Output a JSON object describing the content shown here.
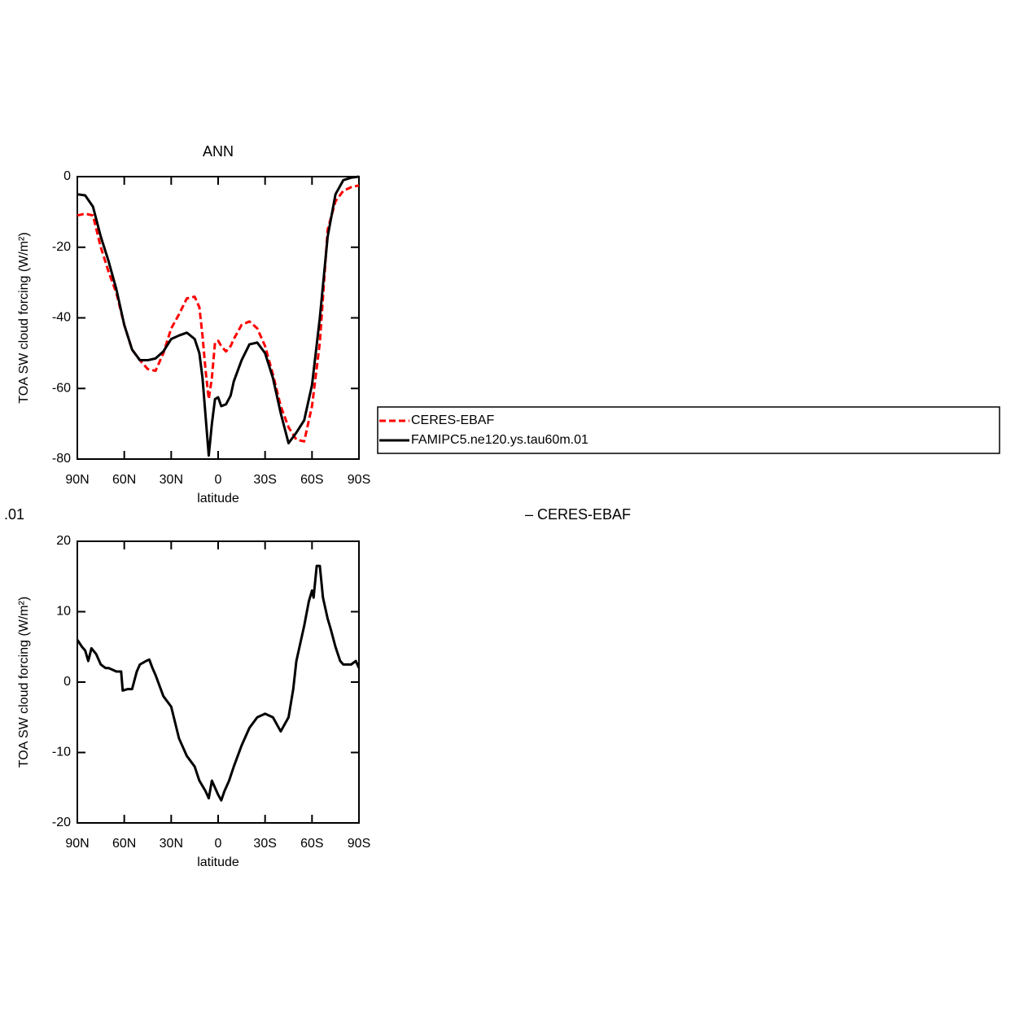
{
  "chart_data": [
    {
      "type": "line",
      "title": "ANN",
      "xlabel": "latitude",
      "ylabel": "TOA SW cloud forcing (W/m²)",
      "x": [
        90,
        85,
        80,
        75,
        70,
        65,
        60,
        55,
        50,
        45,
        40,
        35,
        30,
        25,
        20,
        15,
        12,
        10,
        8,
        6,
        4,
        2,
        0,
        -2,
        -5,
        -8,
        -10,
        -15,
        -20,
        -25,
        -30,
        -35,
        -40,
        -45,
        -50,
        -55,
        -60,
        -65,
        -70,
        -75,
        -80,
        -85,
        -90
      ],
      "xlim": [
        90,
        -90
      ],
      "xticks": [
        {
          "value": 90,
          "label": "90N"
        },
        {
          "value": 60,
          "label": "60N"
        },
        {
          "value": 30,
          "label": "30N"
        },
        0,
        {
          "value": -30,
          "label": "30S"
        },
        {
          "value": -60,
          "label": "60S"
        },
        {
          "value": -90,
          "label": "90S"
        }
      ],
      "ylim": [
        -80,
        0
      ],
      "yticks": [
        -80,
        -60,
        -40,
        -20,
        0
      ],
      "series": [
        {
          "name": "CERES-EBAF",
          "color": "#ff0000",
          "dashed": true,
          "values": [
            -11,
            -10.5,
            -11,
            -20,
            -27,
            -33,
            -42,
            -49,
            -52,
            -54.5,
            -55,
            -50,
            -43,
            -39,
            -34.5,
            -34,
            -37,
            -45,
            -55,
            -63,
            -57,
            -47,
            -46.5,
            -48,
            -49.5,
            -48,
            -46,
            -42,
            -41,
            -43,
            -48,
            -56,
            -65,
            -71,
            -74.5,
            -75,
            -65,
            -47,
            -15,
            -7,
            -4,
            -3,
            -2.5
          ]
        },
        {
          "name": "FAMIPC5.ne120.ys.tau60m.01",
          "color": "#000000",
          "dashed": false,
          "values": [
            -5,
            -5.3,
            -8.5,
            -17,
            -24,
            -32,
            -42,
            -49,
            -52,
            -52,
            -51.5,
            -49.5,
            -46,
            -45,
            -44.2,
            -46,
            -50,
            -57,
            -68,
            -79,
            -70,
            -63,
            -62.5,
            -65,
            -64.5,
            -62,
            -58,
            -52,
            -47.5,
            -47,
            -50,
            -57,
            -67,
            -75.5,
            -72.5,
            -69,
            -59,
            -40,
            -17,
            -5,
            -1,
            -0.3,
            0
          ]
        }
      ],
      "legend": "right"
    },
    {
      "type": "line",
      "title_left": ".01",
      "title_right": "– CERES-EBAF",
      "xlabel": "latitude",
      "ylabel": "TOA SW cloud forcing (W/m²)",
      "x": [
        90,
        87,
        85,
        83,
        81,
        78,
        75,
        72,
        70,
        65,
        62,
        61,
        58,
        55,
        52,
        50,
        46,
        44,
        42,
        40,
        35,
        30,
        25,
        20,
        15,
        12,
        8,
        6,
        4,
        2,
        0,
        -2,
        -4,
        -7,
        -10,
        -15,
        -20,
        -25,
        -30,
        -35,
        -40,
        -45,
        -48,
        -50,
        -55,
        -58,
        -60,
        -61,
        -63,
        -65,
        -67,
        -70,
        -72,
        -75,
        -78,
        -80,
        -85,
        -88,
        -90
      ],
      "xlim": [
        90,
        -90
      ],
      "xticks": [
        {
          "value": 90,
          "label": "90N"
        },
        {
          "value": 60,
          "label": "60N"
        },
        {
          "value": 30,
          "label": "30N"
        },
        0,
        {
          "value": -30,
          "label": "30S"
        },
        {
          "value": -60,
          "label": "60S"
        },
        {
          "value": -90,
          "label": "90S"
        }
      ],
      "ylim": [
        -20,
        20
      ],
      "yticks": [
        -20,
        -10,
        0,
        10,
        20
      ],
      "series": [
        {
          "color": "#000000",
          "dashed": false,
          "values": [
            6,
            5,
            4.5,
            3,
            4.8,
            4,
            2.5,
            2,
            2,
            1.5,
            1.5,
            -1.2,
            -1,
            -1,
            1.5,
            2.5,
            3,
            3.2,
            2,
            1,
            -2,
            -3.5,
            -8,
            -10.5,
            -12,
            -14,
            -15.5,
            -16.5,
            -14,
            -15,
            -16,
            -16.8,
            -15.5,
            -14,
            -12,
            -9,
            -6.5,
            -5,
            -4.5,
            -5,
            -7,
            -5,
            -1,
            3,
            8,
            11.5,
            13,
            12,
            16.5,
            16.5,
            12,
            9,
            7.5,
            5,
            3,
            2.5,
            2.5,
            3,
            2
          ]
        }
      ]
    }
  ]
}
